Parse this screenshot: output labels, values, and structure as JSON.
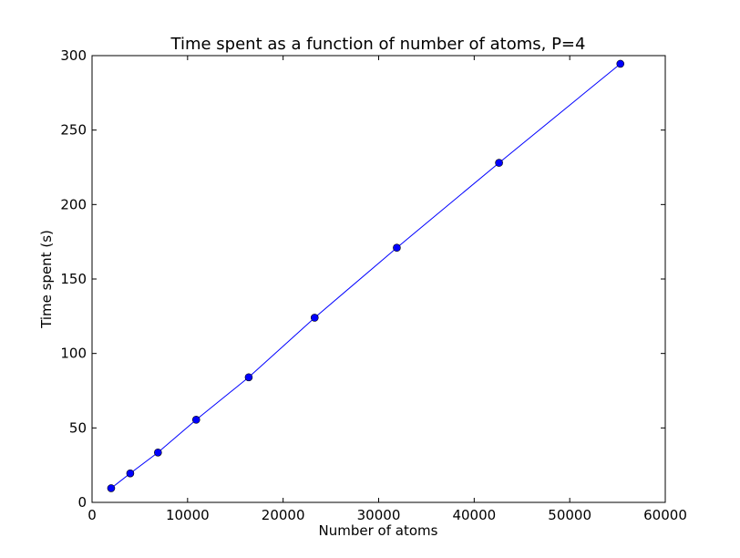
{
  "chart_data": {
    "type": "line",
    "title": "Time spent as a function of number of atoms, P=4",
    "xlabel": "Number of atoms",
    "ylabel": "Time spent (s)",
    "xlim": [
      0,
      60000
    ],
    "ylim": [
      0,
      300
    ],
    "xticks": [
      0,
      10000,
      20000,
      30000,
      40000,
      50000,
      60000
    ],
    "yticks": [
      0,
      50,
      100,
      150,
      200,
      250,
      300
    ],
    "grid": false,
    "series": [
      {
        "color": "#0000ff",
        "marker": "circle",
        "x": [
          2000,
          4000,
          6900,
          10900,
          16400,
          23300,
          31900,
          42600,
          55300
        ],
        "y": [
          9.5,
          19.5,
          33.5,
          55.5,
          84,
          124,
          171,
          228,
          294.5
        ]
      }
    ]
  }
}
